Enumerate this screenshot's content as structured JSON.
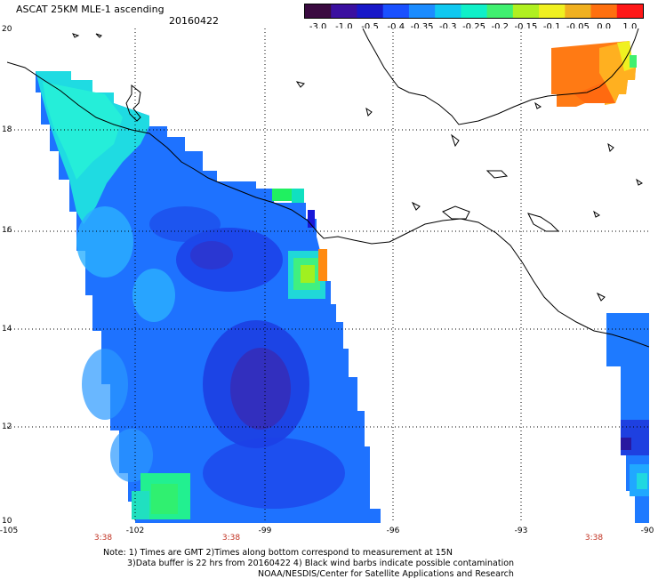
{
  "header": {
    "title": "ASCAT 25KM MLE-1 ascending",
    "date": "20160422"
  },
  "colorbar": {
    "labels": [
      "-3.0",
      "-1.0",
      "-0.5",
      "-0.4",
      "-0.35",
      "-0.3",
      "-0.25",
      "-0.2",
      "-0.15",
      "-0.1",
      "-0.05",
      "0.0",
      "1.0"
    ],
    "colors": [
      "#3a0a40",
      "#3a10a0",
      "#1818c8",
      "#1a50ff",
      "#1c8cff",
      "#10c8f0",
      "#10f0c8",
      "#40f070",
      "#b0f020",
      "#f0f020",
      "#f0b020",
      "#ff7010",
      "#ff1818"
    ]
  },
  "map": {
    "lon_ticks": [
      "-105",
      "-102",
      "-99",
      "-96",
      "-93",
      "-90"
    ],
    "lat_ticks": [
      "20",
      "18",
      "16",
      "14",
      "12",
      "10"
    ],
    "time_labels": [
      "3:38",
      "3:38",
      "3:38"
    ]
  },
  "footer": {
    "note_line1": "Note: 1) Times are GMT 2)Times along bottom correspond to measurement at 15N",
    "note_line2": "3)Data buffer is 22 hrs from 20160422 4) Black wind barbs indicate possible contamination",
    "note_line3": "NOAA/NESDIS/Center for Satellite Applications and Research"
  }
}
